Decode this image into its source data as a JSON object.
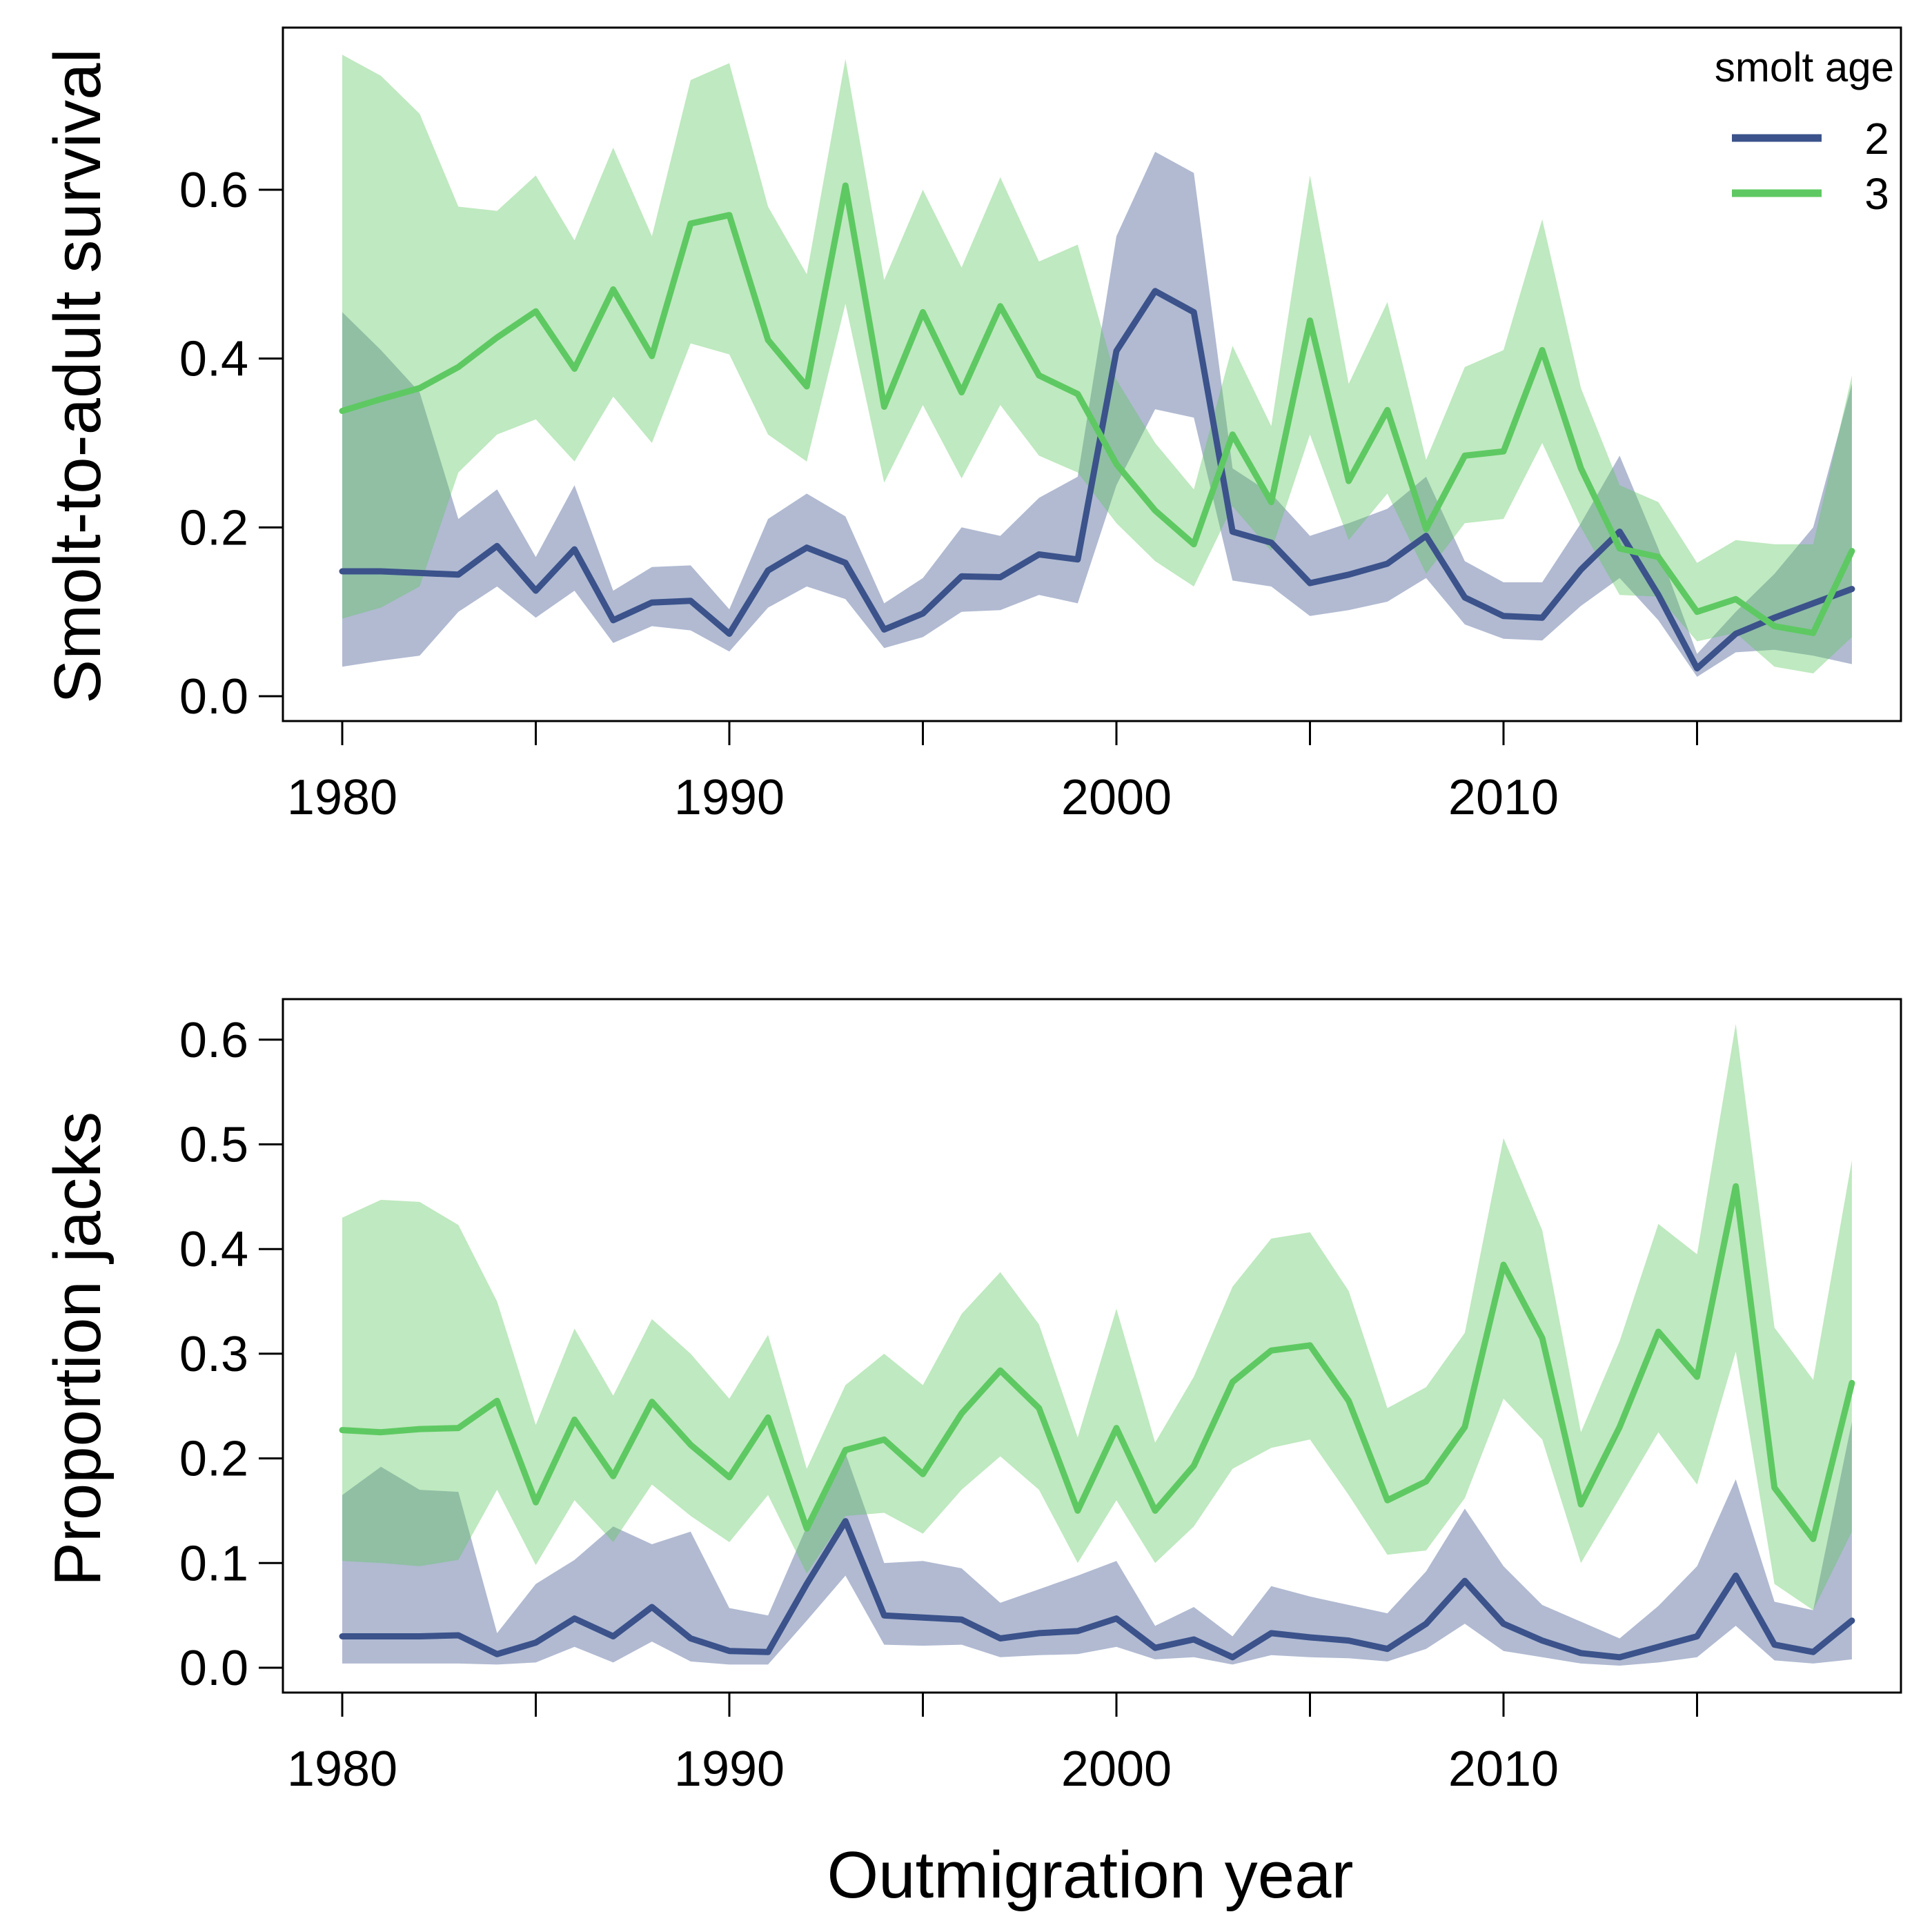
{
  "colors": {
    "age2": "#3b528b",
    "age3": "#5ec962",
    "frame": "#000000"
  },
  "x_axis_title": "Outmigration year",
  "legend": {
    "title": "smolt age",
    "entries": [
      "2",
      "3"
    ]
  },
  "x_ticks": [
    1980,
    1990,
    2000,
    2010
  ],
  "chart_data": [
    {
      "type": "line",
      "title": "",
      "ylabel": "Smolt-to-adult survival",
      "xlabel": "Outmigration year",
      "xlim": [
        1980,
        2019
      ],
      "ylim": [
        0,
        0.8
      ],
      "yticks": [
        "0.0",
        "0.2",
        "0.4",
        "0.6"
      ],
      "legend_position": "top-right",
      "grid": false,
      "x": [
        1980,
        1981,
        1982,
        1983,
        1984,
        1985,
        1986,
        1987,
        1988,
        1989,
        1990,
        1991,
        1992,
        1993,
        1994,
        1995,
        1996,
        1997,
        1998,
        1999,
        2000,
        2001,
        2002,
        2003,
        2004,
        2005,
        2006,
        2007,
        2008,
        2009,
        2010,
        2011,
        2012,
        2013,
        2014,
        2015,
        2016,
        2017,
        2018,
        2019
      ],
      "series": [
        {
          "name": "2",
          "values": [
            0.148,
            0.148,
            0.146,
            0.144,
            0.178,
            0.125,
            0.174,
            0.09,
            0.111,
            0.113,
            0.074,
            0.149,
            0.176,
            0.158,
            0.079,
            0.098,
            0.142,
            0.141,
            0.168,
            0.162,
            0.409,
            0.48,
            0.455,
            0.195,
            0.182,
            0.134,
            0.144,
            0.157,
            0.19,
            0.117,
            0.095,
            0.093,
            0.15,
            0.195,
            0.12,
            0.033,
            0.074,
            0.093,
            0.11,
            0.127
          ],
          "lower": [
            0.035,
            0.042,
            0.048,
            0.1,
            0.13,
            0.093,
            0.125,
            0.063,
            0.083,
            0.078,
            0.053,
            0.105,
            0.13,
            0.115,
            0.057,
            0.07,
            0.1,
            0.102,
            0.12,
            0.11,
            0.25,
            0.34,
            0.33,
            0.137,
            0.13,
            0.095,
            0.102,
            0.112,
            0.14,
            0.085,
            0.068,
            0.066,
            0.107,
            0.14,
            0.09,
            0.023,
            0.052,
            0.055,
            0.048,
            0.038
          ],
          "upper": [
            0.455,
            0.41,
            0.36,
            0.21,
            0.245,
            0.165,
            0.25,
            0.125,
            0.153,
            0.155,
            0.103,
            0.21,
            0.24,
            0.213,
            0.11,
            0.14,
            0.2,
            0.19,
            0.235,
            0.26,
            0.545,
            0.645,
            0.62,
            0.27,
            0.24,
            0.19,
            0.205,
            0.222,
            0.26,
            0.16,
            0.135,
            0.135,
            0.205,
            0.285,
            0.175,
            0.05,
            0.1,
            0.145,
            0.2,
            0.37
          ]
        },
        {
          "name": "3",
          "values": [
            0.338,
            0.352,
            0.365,
            0.39,
            0.425,
            0.456,
            0.388,
            0.482,
            0.403,
            0.56,
            0.57,
            0.422,
            0.367,
            0.605,
            0.343,
            0.455,
            0.36,
            0.462,
            0.38,
            0.358,
            0.275,
            0.22,
            0.18,
            0.31,
            0.23,
            0.445,
            0.255,
            0.339,
            0.198,
            0.285,
            0.29,
            0.41,
            0.27,
            0.175,
            0.165,
            0.1,
            0.115,
            0.083,
            0.075,
            0.172
          ],
          "lower": [
            0.092,
            0.105,
            0.13,
            0.265,
            0.31,
            0.328,
            0.278,
            0.355,
            0.3,
            0.418,
            0.405,
            0.31,
            0.278,
            0.465,
            0.253,
            0.345,
            0.258,
            0.345,
            0.285,
            0.265,
            0.205,
            0.16,
            0.13,
            0.225,
            0.172,
            0.31,
            0.185,
            0.24,
            0.145,
            0.205,
            0.21,
            0.3,
            0.2,
            0.12,
            0.118,
            0.065,
            0.075,
            0.035,
            0.027,
            0.07
          ],
          "upper": [
            0.76,
            0.735,
            0.69,
            0.58,
            0.575,
            0.617,
            0.54,
            0.65,
            0.545,
            0.73,
            0.75,
            0.58,
            0.5,
            0.755,
            0.493,
            0.6,
            0.508,
            0.615,
            0.515,
            0.535,
            0.375,
            0.3,
            0.245,
            0.415,
            0.32,
            0.617,
            0.37,
            0.467,
            0.28,
            0.39,
            0.41,
            0.565,
            0.365,
            0.25,
            0.23,
            0.158,
            0.185,
            0.18,
            0.18,
            0.38
          ]
        }
      ]
    },
    {
      "type": "line",
      "title": "",
      "ylabel": "Proportion jacks",
      "xlabel": "Outmigration year",
      "xlim": [
        1980,
        2019
      ],
      "ylim": [
        0,
        0.64
      ],
      "yticks": [
        "0.0",
        "0.1",
        "0.2",
        "0.3",
        "0.4",
        "0.5",
        "0.6"
      ],
      "grid": false,
      "x": [
        1980,
        1981,
        1982,
        1983,
        1984,
        1985,
        1986,
        1987,
        1988,
        1989,
        1990,
        1991,
        1992,
        1993,
        1994,
        1995,
        1996,
        1997,
        1998,
        1999,
        2000,
        2001,
        2002,
        2003,
        2004,
        2005,
        2006,
        2007,
        2008,
        2009,
        2010,
        2011,
        2012,
        2013,
        2014,
        2015,
        2016,
        2017,
        2018,
        2019
      ],
      "series": [
        {
          "name": "2",
          "values": [
            0.03,
            0.03,
            0.03,
            0.031,
            0.013,
            0.024,
            0.047,
            0.03,
            0.058,
            0.028,
            0.016,
            0.015,
            0.08,
            0.14,
            0.05,
            0.048,
            0.046,
            0.028,
            0.033,
            0.035,
            0.047,
            0.019,
            0.027,
            0.01,
            0.033,
            0.029,
            0.026,
            0.018,
            0.042,
            0.083,
            0.042,
            0.026,
            0.014,
            0.01,
            0.02,
            0.03,
            0.088,
            0.022,
            0.015,
            0.045
          ],
          "lower": [
            0.004,
            0.004,
            0.004,
            0.004,
            0.003,
            0.005,
            0.02,
            0.005,
            0.025,
            0.006,
            0.003,
            0.003,
            0.045,
            0.088,
            0.022,
            0.021,
            0.022,
            0.01,
            0.012,
            0.013,
            0.02,
            0.008,
            0.01,
            0.003,
            0.012,
            0.01,
            0.009,
            0.006,
            0.018,
            0.042,
            0.016,
            0.01,
            0.004,
            0.002,
            0.005,
            0.01,
            0.04,
            0.007,
            0.004,
            0.008
          ],
          "upper": [
            0.165,
            0.192,
            0.17,
            0.168,
            0.033,
            0.08,
            0.103,
            0.135,
            0.118,
            0.13,
            0.057,
            0.05,
            0.135,
            0.205,
            0.1,
            0.102,
            0.095,
            0.062,
            0.075,
            0.088,
            0.102,
            0.04,
            0.058,
            0.03,
            0.078,
            0.068,
            0.06,
            0.052,
            0.092,
            0.152,
            0.097,
            0.06,
            0.044,
            0.028,
            0.059,
            0.097,
            0.18,
            0.063,
            0.055,
            0.235
          ]
        },
        {
          "name": "3",
          "values": [
            0.227,
            0.225,
            0.228,
            0.229,
            0.255,
            0.158,
            0.237,
            0.183,
            0.254,
            0.213,
            0.182,
            0.239,
            0.133,
            0.208,
            0.218,
            0.185,
            0.243,
            0.284,
            0.248,
            0.15,
            0.229,
            0.15,
            0.193,
            0.273,
            0.303,
            0.308,
            0.255,
            0.16,
            0.178,
            0.23,
            0.385,
            0.315,
            0.156,
            0.23,
            0.321,
            0.278,
            0.46,
            0.172,
            0.123,
            0.272
          ],
          "lower": [
            0.102,
            0.1,
            0.097,
            0.103,
            0.17,
            0.098,
            0.16,
            0.12,
            0.175,
            0.145,
            0.12,
            0.165,
            0.09,
            0.145,
            0.148,
            0.128,
            0.17,
            0.202,
            0.17,
            0.1,
            0.16,
            0.1,
            0.135,
            0.19,
            0.21,
            0.218,
            0.165,
            0.108,
            0.112,
            0.162,
            0.257,
            0.218,
            0.1,
            0.162,
            0.225,
            0.175,
            0.302,
            0.08,
            0.055,
            0.13
          ],
          "upper": [
            0.43,
            0.447,
            0.445,
            0.423,
            0.35,
            0.232,
            0.324,
            0.26,
            0.333,
            0.3,
            0.257,
            0.318,
            0.19,
            0.27,
            0.3,
            0.27,
            0.338,
            0.378,
            0.328,
            0.22,
            0.343,
            0.215,
            0.278,
            0.364,
            0.41,
            0.416,
            0.36,
            0.248,
            0.268,
            0.32,
            0.506,
            0.418,
            0.225,
            0.312,
            0.424,
            0.395,
            0.615,
            0.325,
            0.275,
            0.485
          ]
        }
      ]
    }
  ]
}
